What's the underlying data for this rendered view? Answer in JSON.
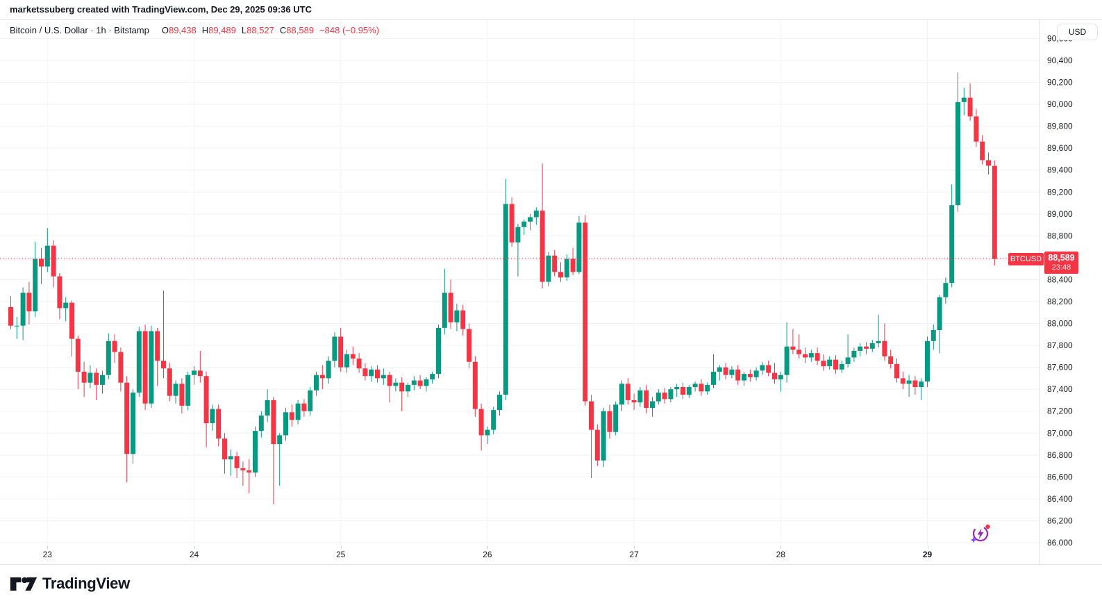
{
  "attribution": "marketssuberg created with TradingView.com, Dec 29, 2025 09:36 UTC",
  "legend": {
    "symbol_title": "Bitcoin / U.S. Dollar · 1h · Bitstamp",
    "ohlc": [
      {
        "label": "O",
        "value": "89,438"
      },
      {
        "label": "H",
        "value": "89,489"
      },
      {
        "label": "L",
        "value": "88,527"
      },
      {
        "label": "C",
        "value": "88,589"
      }
    ],
    "change": "−848 (−0.95%)"
  },
  "price_axis": {
    "currency_button": "USD",
    "tick_values": [
      90600,
      90400,
      90200,
      90000,
      89800,
      89600,
      89400,
      89200,
      89000,
      88800,
      88400,
      88200,
      88000,
      87800,
      87600,
      87400,
      87200,
      87000,
      86800,
      86600,
      86400,
      86200,
      86000
    ]
  },
  "last_price": {
    "symbol_label": "BTCUSD",
    "price": "88,589",
    "countdown": "23:48",
    "value": 88589
  },
  "logo": {
    "text": "TradingView"
  },
  "colors": {
    "up": "#089981",
    "down": "#F23645",
    "grid": "#F0F3FA",
    "axis_text": "#131722",
    "border": "#E0E3EB",
    "accent_red": "#F23645",
    "ai_purple": "#9C27B0",
    "ai_sparkle": "#7C4DFF"
  },
  "chart_data": {
    "type": "candlestick",
    "symbol": "BTCUSD",
    "title": "Bitcoin / U.S. Dollar",
    "interval": "1h",
    "exchange": "Bitstamp",
    "current": {
      "open": 89438,
      "high": 89489,
      "low": 88527,
      "close": 88589,
      "change": -848,
      "change_pct": -0.95
    },
    "ylim": [
      86000,
      90600
    ],
    "grid_step": 200,
    "day_ticks": [
      {
        "label": "23",
        "i": 6
      },
      {
        "label": "24",
        "i": 30
      },
      {
        "label": "25",
        "i": 54
      },
      {
        "label": "26",
        "i": 78
      },
      {
        "label": "27",
        "i": 102
      },
      {
        "label": "28",
        "i": 126
      },
      {
        "label": "29",
        "i": 150,
        "bold": true
      }
    ],
    "candles": [
      [
        88150,
        88250,
        87950,
        87980
      ],
      [
        87980,
        88060,
        87860,
        87980
      ],
      [
        87980,
        88330,
        87850,
        88280
      ],
      [
        88280,
        88380,
        87990,
        88110
      ],
      [
        88110,
        88745,
        88060,
        88590
      ],
      [
        88590,
        88690,
        88360,
        88520
      ],
      [
        88520,
        88870,
        88470,
        88710
      ],
      [
        88710,
        88760,
        88330,
        88430
      ],
      [
        88430,
        88460,
        88040,
        88140
      ],
      [
        88140,
        88240,
        88020,
        88190
      ],
      [
        88190,
        88210,
        87700,
        87860
      ],
      [
        87860,
        87890,
        87400,
        87560
      ],
      [
        87560,
        87650,
        87330,
        87460
      ],
      [
        87460,
        87620,
        87410,
        87550
      ],
      [
        87550,
        87590,
        87300,
        87440
      ],
      [
        87440,
        87570,
        87360,
        87530
      ],
      [
        87530,
        87910,
        87490,
        87840
      ],
      [
        87840,
        87900,
        87640,
        87740
      ],
      [
        87740,
        87780,
        87380,
        87460
      ],
      [
        87460,
        87520,
        86550,
        86810
      ],
      [
        86810,
        87400,
        86720,
        87370
      ],
      [
        87370,
        87970,
        87330,
        87930
      ],
      [
        87930,
        87990,
        87210,
        87270
      ],
      [
        87270,
        87980,
        87230,
        87930
      ],
      [
        87930,
        87960,
        87430,
        87660
      ],
      [
        87660,
        88300,
        87500,
        87590
      ],
      [
        87590,
        87640,
        87290,
        87340
      ],
      [
        87340,
        87480,
        87270,
        87450
      ],
      [
        87450,
        87500,
        87180,
        87250
      ],
      [
        87250,
        87560,
        87210,
        87530
      ],
      [
        87530,
        87610,
        87440,
        87570
      ],
      [
        87570,
        87750,
        87460,
        87520
      ],
      [
        87520,
        87560,
        86870,
        87090
      ],
      [
        87090,
        87260,
        87020,
        87220
      ],
      [
        87220,
        87260,
        86880,
        86950
      ],
      [
        86950,
        87000,
        86630,
        86760
      ],
      [
        86760,
        86850,
        86610,
        86790
      ],
      [
        86790,
        86830,
        86590,
        86680
      ],
      [
        86680,
        86740,
        86520,
        86660
      ],
      [
        86660,
        86760,
        86450,
        86640
      ],
      [
        86640,
        87060,
        86600,
        87020
      ],
      [
        87020,
        87200,
        86960,
        87160
      ],
      [
        87160,
        87400,
        87100,
        87300
      ],
      [
        87300,
        87330,
        86350,
        86900
      ],
      [
        86900,
        87000,
        86520,
        86980
      ],
      [
        86980,
        87230,
        86930,
        87190
      ],
      [
        87190,
        87260,
        87060,
        87120
      ],
      [
        87120,
        87300,
        87080,
        87270
      ],
      [
        87270,
        87310,
        87150,
        87200
      ],
      [
        87200,
        87420,
        87160,
        87390
      ],
      [
        87390,
        87560,
        87340,
        87530
      ],
      [
        87530,
        87620,
        87400,
        87500
      ],
      [
        87500,
        87700,
        87450,
        87660
      ],
      [
        87660,
        87920,
        87600,
        87880
      ],
      [
        87880,
        87960,
        87560,
        87600
      ],
      [
        87600,
        87760,
        87550,
        87720
      ],
      [
        87720,
        87790,
        87620,
        87680
      ],
      [
        87680,
        87730,
        87550,
        87590
      ],
      [
        87590,
        87640,
        87480,
        87520
      ],
      [
        87520,
        87610,
        87470,
        87580
      ],
      [
        87580,
        87620,
        87460,
        87500
      ],
      [
        87500,
        87590,
        87440,
        87530
      ],
      [
        87530,
        87560,
        87280,
        87430
      ],
      [
        87430,
        87500,
        87380,
        87460
      ],
      [
        87460,
        87510,
        87200,
        87380
      ],
      [
        87380,
        87460,
        87330,
        87440
      ],
      [
        87440,
        87520,
        87390,
        87480
      ],
      [
        87480,
        87530,
        87400,
        87430
      ],
      [
        87430,
        87510,
        87380,
        87490
      ],
      [
        87490,
        87560,
        87450,
        87540
      ],
      [
        87540,
        87990,
        87500,
        87960
      ],
      [
        87960,
        88500,
        87900,
        88280
      ],
      [
        88280,
        88400,
        87950,
        88010
      ],
      [
        88010,
        88180,
        87930,
        88120
      ],
      [
        88120,
        88170,
        87890,
        87950
      ],
      [
        87950,
        88000,
        87590,
        87650
      ],
      [
        87650,
        87700,
        87150,
        87220
      ],
      [
        87220,
        87270,
        86840,
        86980
      ],
      [
        86980,
        87060,
        86900,
        87030
      ],
      [
        87030,
        87240,
        86990,
        87210
      ],
      [
        87210,
        87380,
        87160,
        87350
      ],
      [
        87350,
        89320,
        87300,
        89090
      ],
      [
        89090,
        89150,
        88700,
        88740
      ],
      [
        88740,
        88910,
        88430,
        88880
      ],
      [
        88880,
        88950,
        88810,
        88930
      ],
      [
        88930,
        89000,
        88850,
        88970
      ],
      [
        88970,
        89060,
        88900,
        89030
      ],
      [
        89030,
        89460,
        88320,
        88380
      ],
      [
        88380,
        88650,
        88340,
        88620
      ],
      [
        88620,
        88670,
        88430,
        88470
      ],
      [
        88470,
        88560,
        88380,
        88420
      ],
      [
        88420,
        88630,
        88390,
        88590
      ],
      [
        88590,
        88690,
        88440,
        88470
      ],
      [
        88470,
        88980,
        88450,
        88920
      ],
      [
        88920,
        88990,
        87250,
        87290
      ],
      [
        87290,
        87350,
        86590,
        87030
      ],
      [
        87030,
        87080,
        86700,
        86750
      ],
      [
        86750,
        87230,
        86690,
        87200
      ],
      [
        87200,
        87260,
        86950,
        87010
      ],
      [
        87010,
        87290,
        86980,
        87260
      ],
      [
        87260,
        87480,
        87200,
        87450
      ],
      [
        87450,
        87500,
        87260,
        87300
      ],
      [
        87300,
        87360,
        87210,
        87280
      ],
      [
        87280,
        87420,
        87240,
        87390
      ],
      [
        87390,
        87440,
        87180,
        87230
      ],
      [
        87230,
        87330,
        87150,
        87290
      ],
      [
        87290,
        87400,
        87260,
        87370
      ],
      [
        87370,
        87410,
        87270,
        87310
      ],
      [
        87310,
        87420,
        87280,
        87400
      ],
      [
        87400,
        87450,
        87330,
        87420
      ],
      [
        87420,
        87460,
        87310,
        87350
      ],
      [
        87350,
        87440,
        87320,
        87420
      ],
      [
        87420,
        87470,
        87380,
        87450
      ],
      [
        87450,
        87490,
        87340,
        87380
      ],
      [
        87380,
        87460,
        87350,
        87440
      ],
      [
        87440,
        87720,
        87410,
        87560
      ],
      [
        87560,
        87620,
        87480,
        87600
      ],
      [
        87600,
        87640,
        87490,
        87530
      ],
      [
        87530,
        87610,
        87500,
        87580
      ],
      [
        87580,
        87620,
        87440,
        87480
      ],
      [
        87480,
        87560,
        87430,
        87540
      ],
      [
        87540,
        87580,
        87470,
        87510
      ],
      [
        87510,
        87600,
        87480,
        87570
      ],
      [
        87570,
        87650,
        87530,
        87620
      ],
      [
        87620,
        87660,
        87520,
        87550
      ],
      [
        87550,
        87640,
        87450,
        87490
      ],
      [
        87490,
        87560,
        87380,
        87530
      ],
      [
        87530,
        88010,
        87460,
        87790
      ],
      [
        87790,
        87950,
        87720,
        87760
      ],
      [
        87760,
        87900,
        87680,
        87720
      ],
      [
        87720,
        87780,
        87640,
        87690
      ],
      [
        87690,
        87760,
        87650,
        87730
      ],
      [
        87730,
        87780,
        87620,
        87660
      ],
      [
        87660,
        87720,
        87570,
        87610
      ],
      [
        87610,
        87700,
        87580,
        87670
      ],
      [
        87670,
        87710,
        87540,
        87580
      ],
      [
        87580,
        87660,
        87550,
        87630
      ],
      [
        87630,
        87900,
        87600,
        87690
      ],
      [
        87690,
        87780,
        87650,
        87750
      ],
      [
        87750,
        87820,
        87700,
        87790
      ],
      [
        87790,
        87830,
        87720,
        87770
      ],
      [
        87770,
        87850,
        87740,
        87820
      ],
      [
        87820,
        88080,
        87780,
        87840
      ],
      [
        87840,
        88000,
        87660,
        87700
      ],
      [
        87700,
        87760,
        87590,
        87630
      ],
      [
        87630,
        87680,
        87460,
        87500
      ],
      [
        87500,
        87560,
        87400,
        87450
      ],
      [
        87450,
        87530,
        87330,
        87480
      ],
      [
        87480,
        87520,
        87350,
        87420
      ],
      [
        87420,
        87500,
        87300,
        87470
      ],
      [
        87470,
        87880,
        87420,
        87840
      ],
      [
        87840,
        87990,
        87760,
        87940
      ],
      [
        87940,
        88260,
        87730,
        88240
      ],
      [
        88240,
        88420,
        88180,
        88370
      ],
      [
        88370,
        89270,
        88330,
        89080
      ],
      [
        89080,
        90290,
        89020,
        90020
      ],
      [
        90020,
        90150,
        89900,
        90060
      ],
      [
        90060,
        90190,
        89850,
        89890
      ],
      [
        89890,
        89960,
        89610,
        89660
      ],
      [
        89660,
        89720,
        89450,
        89490
      ],
      [
        89490,
        89560,
        89360,
        89440
      ],
      [
        89438,
        89489,
        88527,
        88589
      ]
    ]
  }
}
